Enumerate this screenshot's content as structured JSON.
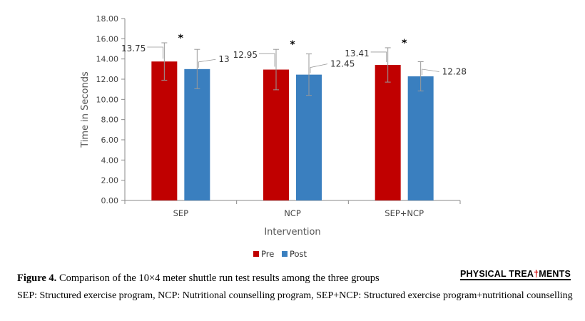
{
  "chart_data": {
    "type": "bar",
    "categories": [
      "SEP",
      "NCP",
      "SEP+NCP"
    ],
    "series": [
      {
        "name": "Pre",
        "color": "#c00000",
        "values": [
          13.75,
          12.95,
          13.41
        ],
        "errors": [
          1.85,
          2.0,
          1.7
        ],
        "labels": [
          "13.75",
          "12.95",
          "13.41"
        ]
      },
      {
        "name": "Post",
        "color": "#3a7fbf",
        "values": [
          13,
          12.45,
          12.28
        ],
        "errors": [
          1.95,
          2.05,
          1.45
        ],
        "labels": [
          "13",
          "12.45",
          "12.28"
        ]
      }
    ],
    "significance_marks": [
      "*",
      "*",
      "*"
    ],
    "xlabel": "Intervention",
    "ylabel": "Time in Seconds",
    "ylim": [
      0,
      18
    ],
    "yticks": [
      "0.00",
      "2.00",
      "4.00",
      "6.00",
      "8.00",
      "10.00",
      "12.00",
      "14.00",
      "16.00",
      "18.00"
    ],
    "legend_position": "bottom",
    "grid": false
  },
  "caption": {
    "figure_label": "Figure 4.",
    "title": " Comparison of the 10×4 meter shuttle run test results among the three groups",
    "note": "SEP: Structured exercise program, NCP: Nutritional counselling program, SEP+NCP: Structured exercise program+nutritional counselling"
  },
  "brand": {
    "text_before": "PHYSICAL TREA",
    "dagger": "†",
    "text_after": "MENTS"
  }
}
